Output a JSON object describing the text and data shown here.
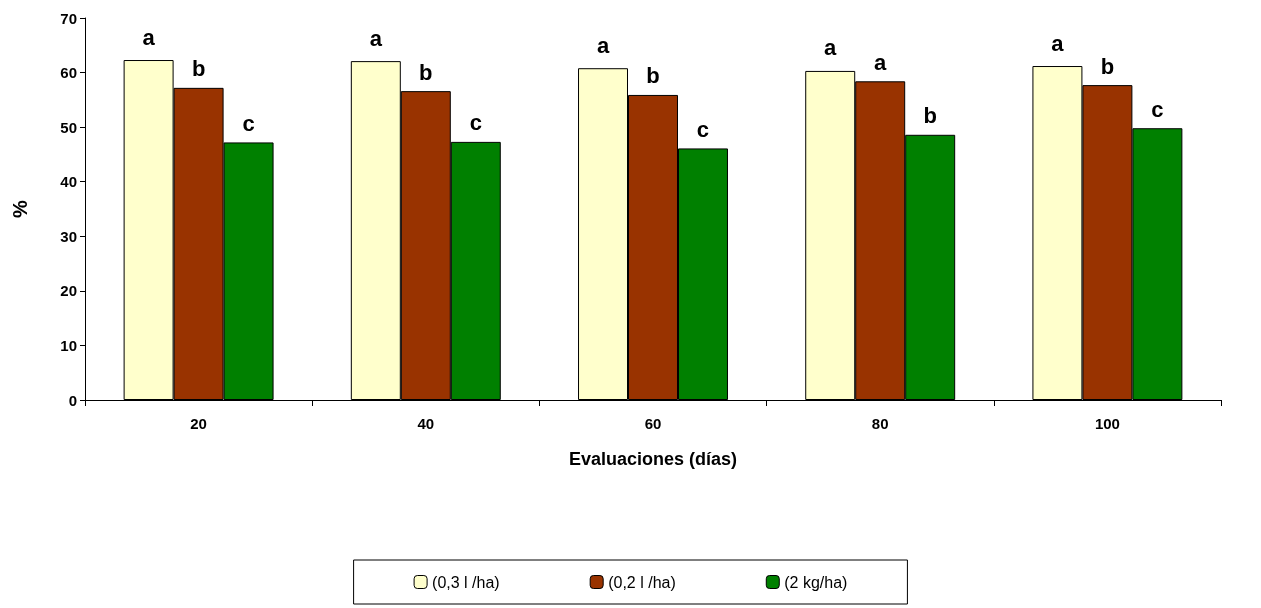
{
  "chart_data": {
    "type": "bar",
    "xlabel": "Evaluaciones (días)",
    "ylabel": "%",
    "categories": [
      "20",
      "40",
      "60",
      "80",
      "100"
    ],
    "series": [
      {
        "name": "(0,3 l /ha)",
        "color": "#ffffcc",
        "values": [
          62.3,
          62.1,
          60.8,
          60.3,
          61.2
        ],
        "value_labels": [
          "a",
          "a",
          "a",
          "a",
          "a"
        ]
      },
      {
        "name": "(0,2 l /ha)",
        "color": "#993300",
        "values": [
          57.2,
          56.6,
          55.9,
          58.4,
          57.7
        ],
        "value_labels": [
          "b",
          "b",
          "b",
          "a",
          "b"
        ]
      },
      {
        "name": "(2 kg/ha)",
        "color": "#008000",
        "values": [
          47.2,
          47.3,
          46.1,
          48.6,
          49.8
        ],
        "value_labels": [
          "c",
          "c",
          "c",
          "b",
          "c"
        ]
      }
    ],
    "ylim": [
      0,
      70
    ],
    "yticks": [
      0,
      10,
      20,
      30,
      40,
      50,
      60,
      70
    ],
    "grid": false,
    "legend": "bottom"
  }
}
